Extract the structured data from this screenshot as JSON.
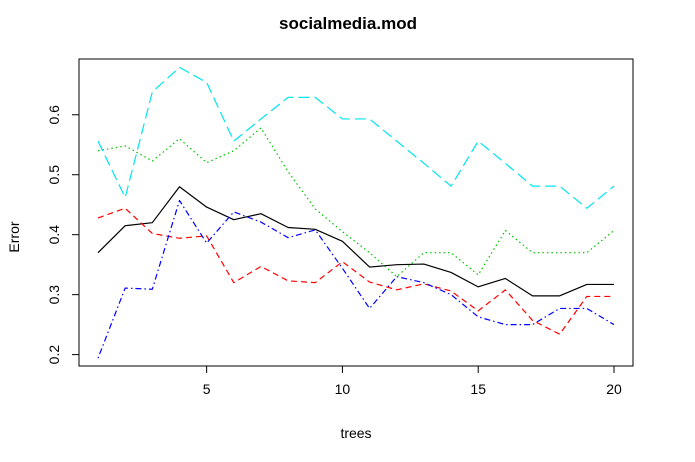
{
  "chart_data": {
    "type": "line",
    "title": "socialmedia.mod",
    "xlabel": "trees",
    "ylabel": "Error",
    "xlim": [
      0.3,
      20.7
    ],
    "ylim": [
      0.181,
      0.693
    ],
    "x_ticks": [
      5,
      10,
      15,
      20
    ],
    "y_ticks": [
      0.2,
      0.3,
      0.4,
      0.5,
      0.6
    ],
    "x_tick_labels": [
      "5",
      "10",
      "15",
      "20"
    ],
    "y_tick_labels": [
      "0.2",
      "0.3",
      "0.4",
      "0.5",
      "0.6"
    ],
    "legend": "none",
    "grid": false,
    "x": [
      1,
      2,
      3,
      4,
      5,
      6,
      7,
      8,
      9,
      10,
      11,
      12,
      13,
      14,
      15,
      16,
      17,
      18,
      19,
      20
    ],
    "series": [
      {
        "color": "#000000",
        "dash": "solid",
        "values": [
          0.37,
          0.415,
          0.42,
          0.48,
          0.446,
          0.425,
          0.435,
          0.412,
          0.409,
          0.389,
          0.346,
          0.35,
          0.351,
          0.337,
          0.313,
          0.327,
          0.298,
          0.298,
          0.317,
          0.317
        ]
      },
      {
        "color": "#ff0000",
        "dash": "dashed",
        "values": [
          0.428,
          0.444,
          0.402,
          0.394,
          0.398,
          0.32,
          0.347,
          0.323,
          0.32,
          0.355,
          0.321,
          0.308,
          0.318,
          0.306,
          0.273,
          0.308,
          0.257,
          0.234,
          0.297,
          0.297
        ]
      },
      {
        "color": "#00c000",
        "dash": "dotted",
        "values": [
          0.54,
          0.548,
          0.523,
          0.56,
          0.52,
          0.54,
          0.578,
          0.505,
          0.443,
          0.405,
          0.37,
          0.33,
          0.37,
          0.37,
          0.333,
          0.407,
          0.37,
          0.37,
          0.37,
          0.407
        ]
      },
      {
        "color": "#0000ff",
        "dash": "dotdash",
        "values": [
          0.194,
          0.311,
          0.309,
          0.457,
          0.386,
          0.438,
          0.421,
          0.395,
          0.408,
          0.344,
          0.277,
          0.33,
          0.32,
          0.3,
          0.263,
          0.25,
          0.25,
          0.277,
          0.277,
          0.25
        ]
      },
      {
        "color": "#00e5ee",
        "dash": "longdash",
        "values": [
          0.556,
          0.462,
          0.638,
          0.679,
          0.654,
          0.556,
          0.593,
          0.629,
          0.629,
          0.593,
          0.593,
          0.556,
          0.519,
          0.481,
          0.556,
          0.519,
          0.481,
          0.481,
          0.444,
          0.481
        ]
      }
    ]
  }
}
